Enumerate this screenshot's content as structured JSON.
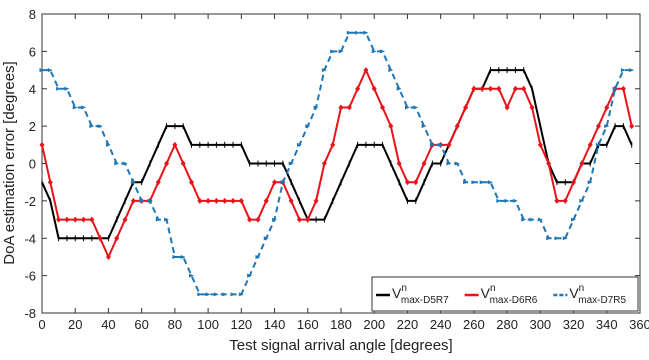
{
  "chart_data": {
    "type": "line",
    "xlabel": "Test signal arrival angle [degrees]",
    "ylabel": "DoA estimation error [degrees]",
    "x": [
      0,
      5,
      10,
      15,
      20,
      25,
      30,
      35,
      40,
      45,
      50,
      55,
      60,
      65,
      70,
      75,
      80,
      85,
      90,
      95,
      100,
      105,
      110,
      115,
      120,
      125,
      130,
      135,
      140,
      145,
      150,
      155,
      160,
      165,
      170,
      175,
      180,
      185,
      190,
      195,
      200,
      205,
      210,
      215,
      220,
      225,
      230,
      235,
      240,
      245,
      250,
      255,
      260,
      265,
      270,
      275,
      280,
      285,
      290,
      295,
      300,
      305,
      310,
      315,
      320,
      325,
      330,
      335,
      340,
      345,
      350,
      355
    ],
    "xlim": [
      0,
      360
    ],
    "xticks": [
      0,
      20,
      40,
      60,
      80,
      100,
      120,
      140,
      160,
      180,
      200,
      220,
      240,
      260,
      280,
      300,
      320,
      340,
      360
    ],
    "ylim": [
      -8,
      8
    ],
    "yticks": [
      -8,
      -6,
      -4,
      -2,
      0,
      2,
      4,
      6,
      8
    ],
    "legend": "lower right",
    "series": [
      {
        "name": "V",
        "superscript": "n",
        "subscript": "max-D5R7",
        "color": "#000000",
        "dashed": false,
        "values": [
          -1,
          -2,
          -4,
          -4,
          -4,
          -4,
          -4,
          -4,
          -4,
          -3,
          -2,
          -1,
          -1,
          0,
          1,
          2,
          2,
          2,
          1,
          1,
          1,
          1,
          1,
          1,
          1,
          0,
          0,
          0,
          0,
          0,
          -1,
          -2,
          -3,
          -3,
          -3,
          -2,
          -1,
          0,
          1,
          1,
          1,
          1,
          0,
          -1,
          -2,
          -2,
          -1,
          0,
          0,
          1,
          2,
          3,
          4,
          4,
          5,
          5,
          5,
          5,
          5,
          4,
          2,
          0,
          -1,
          -1,
          -1,
          0,
          0,
          1,
          1,
          2,
          2,
          1
        ]
      },
      {
        "name": "V",
        "superscript": "n",
        "subscript": "max-D6R6",
        "color": "#e8141a",
        "dashed": false,
        "values": [
          1,
          -1,
          -3,
          -3,
          -3,
          -3,
          -3,
          -4,
          -5,
          -4,
          -3,
          -2,
          -2,
          -2,
          -1,
          0,
          1,
          0,
          -1,
          -2,
          -2,
          -2,
          -2,
          -2,
          -2,
          -3,
          -3,
          -2,
          -1,
          -1,
          -2,
          -3,
          -3,
          -2,
          0,
          1,
          3,
          3,
          4,
          5,
          4,
          3,
          2,
          0,
          -1,
          -1,
          0,
          1,
          1,
          1,
          2,
          3,
          4,
          4,
          4,
          4,
          3,
          4,
          4,
          3,
          1,
          0,
          -2,
          -2,
          -1,
          0,
          1,
          2,
          3,
          4,
          4,
          2
        ]
      },
      {
        "name": "V",
        "superscript": "n",
        "subscript": "max-D7R5",
        "color": "#1f77b4",
        "dashed": true,
        "values": [
          5,
          5,
          4,
          4,
          3,
          3,
          2,
          2,
          1,
          0,
          0,
          -1,
          -2,
          -2,
          -3,
          -3,
          -5,
          -5,
          -6,
          -7,
          -7,
          -7,
          -7,
          -7,
          -7,
          -6,
          -5,
          -4,
          -3,
          -1,
          0,
          1,
          2,
          3,
          5,
          6,
          6,
          7,
          7,
          7,
          6,
          6,
          5,
          4,
          3,
          3,
          2,
          1,
          1,
          0,
          0,
          -1,
          -1,
          -1,
          -1,
          -2,
          -2,
          -2,
          -3,
          -3,
          -3,
          -4,
          -4,
          -4,
          -3,
          -2,
          -1,
          1,
          2,
          4,
          5,
          5
        ]
      }
    ]
  }
}
